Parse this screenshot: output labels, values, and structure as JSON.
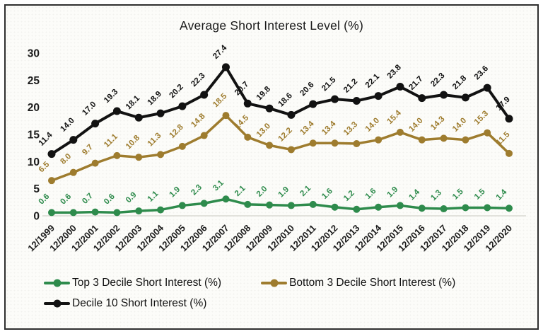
{
  "chart_data": {
    "type": "line",
    "title": "Average Short Interest Level (%)",
    "xlabel": "",
    "ylabel": "",
    "ylim": [
      0,
      30
    ],
    "yticks": [
      0,
      5,
      10,
      15,
      20,
      25,
      30
    ],
    "grid": false,
    "legend_position": "bottom",
    "data_labels": true,
    "label_rotation_deg": -45,
    "categories": [
      "12/1999",
      "12/2000",
      "12/2001",
      "12/2002",
      "12/2003",
      "12/2004",
      "12/2005",
      "12/2006",
      "12/2007",
      "12/2008",
      "12/2009",
      "12/2010",
      "12/2011",
      "12/2012",
      "12/2013",
      "12/2014",
      "12/2015",
      "12/2016",
      "12/2017",
      "12/2018",
      "12/2019",
      "12/2020"
    ],
    "series": [
      {
        "name": "Top 3 Decile Short Interest (%)",
        "color": "#2e8b4c",
        "values": [
          0.6,
          0.6,
          0.7,
          0.6,
          0.9,
          1.1,
          1.9,
          2.3,
          3.1,
          2.1,
          2.0,
          1.9,
          2.1,
          1.6,
          1.2,
          1.6,
          1.9,
          1.4,
          1.3,
          1.5,
          1.5,
          1.4
        ]
      },
      {
        "name": "Bottom 3 Decile Short Interest (%)",
        "color": "#9e7c2e",
        "values": [
          6.5,
          8.0,
          9.7,
          11.1,
          10.8,
          11.3,
          12.8,
          14.8,
          18.5,
          14.5,
          13.0,
          12.2,
          13.4,
          13.4,
          13.3,
          14.0,
          15.4,
          14.0,
          14.3,
          14.0,
          15.3,
          11.5
        ]
      },
      {
        "name": "Decile 10 Short Interest (%)",
        "color": "#121212",
        "values": [
          11.4,
          14.0,
          17.0,
          19.3,
          18.1,
          18.9,
          20.2,
          22.3,
          27.4,
          20.7,
          19.8,
          18.6,
          20.6,
          21.5,
          21.2,
          22.1,
          23.8,
          21.7,
          22.3,
          21.8,
          23.6,
          17.9
        ]
      }
    ],
    "colors": {
      "baseline": "#d9d9d3",
      "frame_border": "#2f2f2f",
      "background": "#fcfcf9",
      "text": "#1b1b1b"
    }
  }
}
